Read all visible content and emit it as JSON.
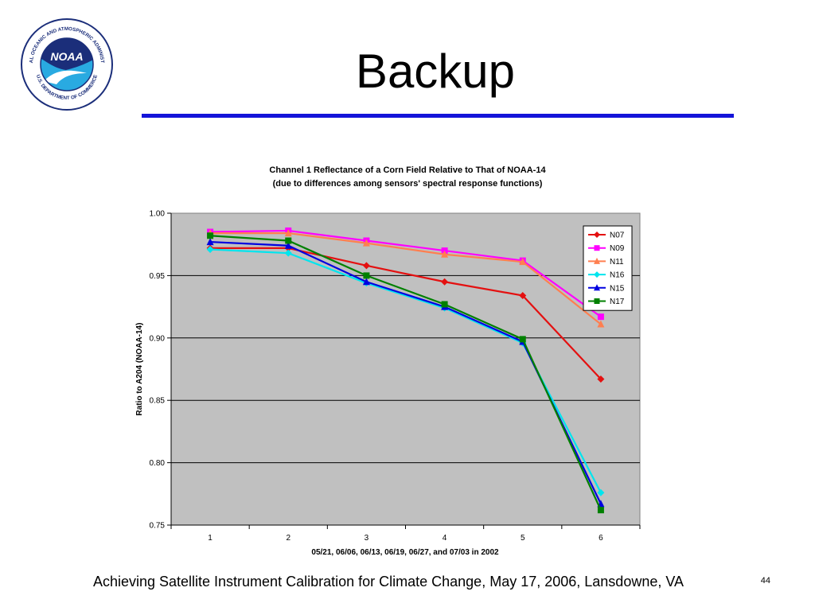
{
  "slide": {
    "title": "Backup",
    "footer": "Achieving Satellite Instrument Calibration for Climate Change, May 17, 2006, Lansdowne, VA",
    "page_number": "44",
    "logo": {
      "name": "noaa-logo",
      "ring_text_top": "NATIONAL OCEANIC AND ATMOSPHERIC ADMINISTRATION",
      "ring_text_bottom": "U.S. DEPARTMENT OF COMMERCE",
      "center_text": "NOAA"
    },
    "colors": {
      "rule": "#1414d9",
      "plot_bg": "#c0c0c0"
    }
  },
  "chart_data": {
    "type": "line",
    "title": "Channel 1 Reflectance of a Corn Field Relative to That of NOAA-14",
    "subtitle": "(due to differences among sensors' spectral response functions)",
    "xlabel": "05/21, 06/06, 06/13, 06/19, 06/27, and 07/03 in 2002",
    "ylabel": "Ratio to A204 (NOAA-14)",
    "x": [
      1,
      2,
      3,
      4,
      5,
      6
    ],
    "ylim": [
      0.75,
      1.0
    ],
    "yticks": [
      "0.75",
      "0.80",
      "0.85",
      "0.90",
      "0.95",
      "1.00"
    ],
    "grid": "horizontal",
    "legend_position": "top-right",
    "series": [
      {
        "name": "N07",
        "color": "#e41010",
        "marker": "diamond",
        "values": [
          0.972,
          0.972,
          0.958,
          0.945,
          0.934,
          0.867
        ]
      },
      {
        "name": "N09",
        "color": "#ff00ff",
        "marker": "square",
        "values": [
          0.985,
          0.986,
          0.978,
          0.97,
          0.962,
          0.917
        ]
      },
      {
        "name": "N11",
        "color": "#ff7f50",
        "marker": "triangle",
        "values": [
          0.984,
          0.984,
          0.976,
          0.967,
          0.961,
          0.911
        ]
      },
      {
        "name": "N16",
        "color": "#00e5ee",
        "marker": "diamond",
        "values": [
          0.971,
          0.968,
          0.944,
          0.924,
          0.896,
          0.776
        ]
      },
      {
        "name": "N15",
        "color": "#0000e0",
        "marker": "triangle",
        "values": [
          0.977,
          0.974,
          0.945,
          0.925,
          0.897,
          0.767
        ]
      },
      {
        "name": "N17",
        "color": "#008000",
        "marker": "square",
        "values": [
          0.982,
          0.978,
          0.95,
          0.927,
          0.899,
          0.762
        ]
      }
    ]
  }
}
